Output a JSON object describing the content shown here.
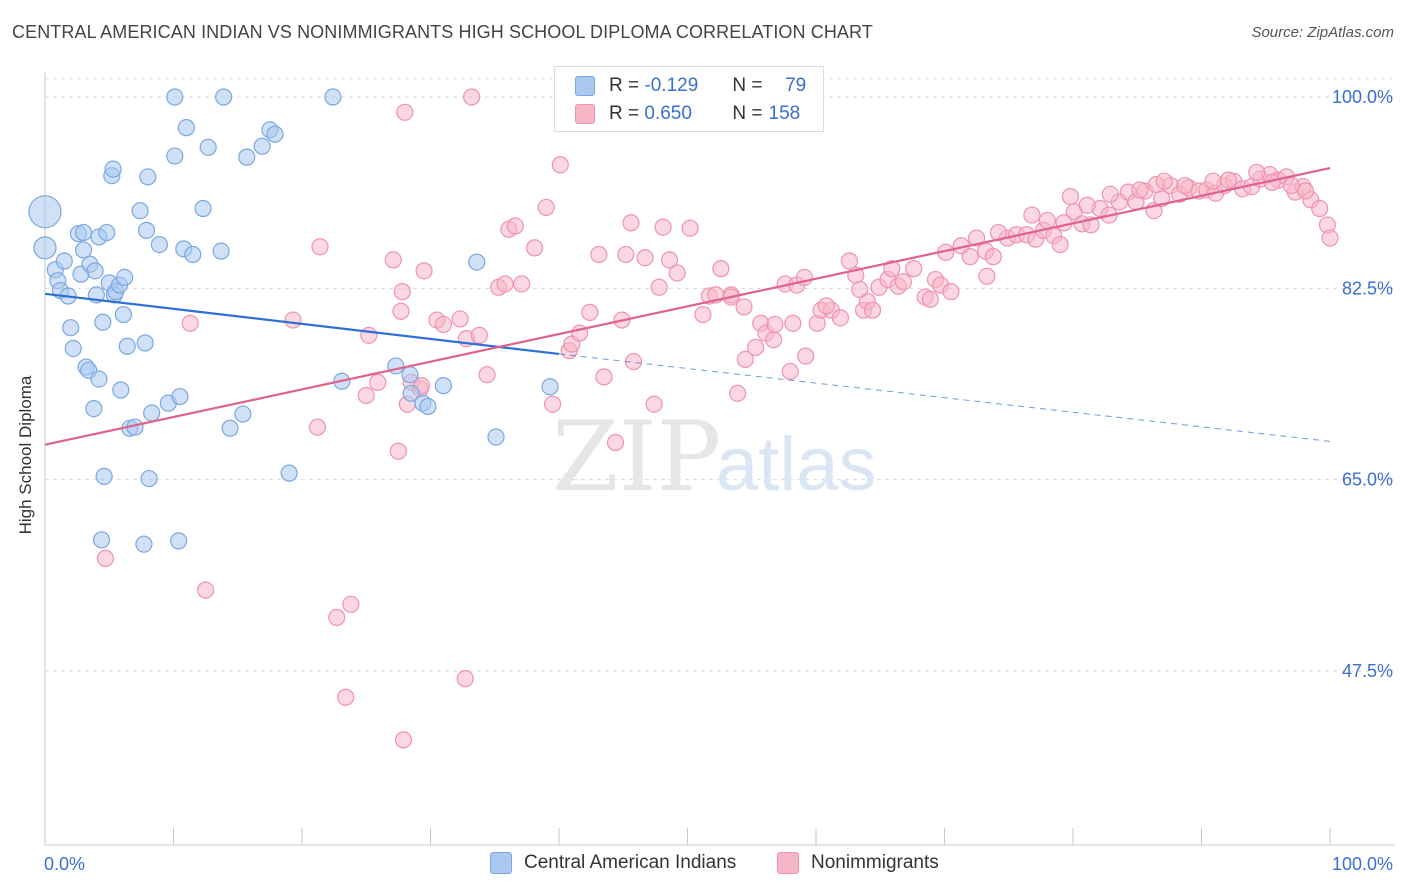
{
  "header": {
    "title": "CENTRAL AMERICAN INDIAN VS NONIMMIGRANTS HIGH SCHOOL DIPLOMA CORRELATION CHART",
    "source": "Source: ZipAtlas.com"
  },
  "legend": {
    "r_label": "R =",
    "n_label": "N =",
    "rows": [
      {
        "r": "-0.129",
        "n": "79"
      },
      {
        "r": "0.650",
        "n": "158"
      }
    ]
  },
  "watermark": {
    "zip": "ZIP",
    "atlas": "atlas"
  },
  "colors": {
    "blue_fill": "#aac8f0",
    "blue_stroke": "#7aa8e0",
    "blue_line": "#2f6fd6",
    "pink_fill": "#f7b6c8",
    "pink_stroke": "#ee93b0",
    "pink_line": "#e0628c",
    "tick_text": "#3a6fd0"
  },
  "chart_data": {
    "type": "scatter",
    "title": "CENTRAL AMERICAN INDIAN VS NONIMMIGRANTS HIGH SCHOOL DIPLOMA CORRELATION CHART",
    "xlabel": "",
    "ylabel": "High School Diploma",
    "xlim": [
      0,
      100
    ],
    "ylim": [
      30,
      102
    ],
    "x_tick_labels": [
      "0.0%",
      "100.0%"
    ],
    "y_ticks": [
      47.5,
      65.0,
      82.5,
      100.0
    ],
    "y_tick_labels": [
      "47.5%",
      "65.0%",
      "82.5%",
      "100.0%"
    ],
    "grid": true,
    "legend_position": "top-center",
    "series": [
      {
        "name": "Central American Indians",
        "r": -0.129,
        "n": 79,
        "trend": {
          "x0": 0,
          "y0": 82.0,
          "x1": 40,
          "y1": 76.5,
          "dash_to_x": 100,
          "dash_to_y": 68.5
        },
        "points": [
          [
            0,
            89.5,
            16
          ],
          [
            0,
            86.2,
            11
          ],
          [
            0.8,
            84.2,
            8
          ],
          [
            1,
            83.2,
            8
          ],
          [
            1.2,
            82.3,
            8
          ],
          [
            1.5,
            85,
            8
          ],
          [
            1.8,
            81.8,
            8
          ],
          [
            2,
            78.9,
            8
          ],
          [
            2.2,
            77,
            8
          ],
          [
            2.6,
            87.5,
            8
          ],
          [
            2.8,
            83.8,
            8
          ],
          [
            3,
            87.6,
            8
          ],
          [
            3,
            86,
            8
          ],
          [
            3.2,
            75.3,
            8
          ],
          [
            3.4,
            75,
            8
          ],
          [
            3.5,
            84.7,
            8
          ],
          [
            3.8,
            71.5,
            8
          ],
          [
            3.9,
            84.1,
            8
          ],
          [
            4,
            81.9,
            8
          ],
          [
            4.2,
            74.2,
            8
          ],
          [
            4.2,
            87.2,
            8
          ],
          [
            4.5,
            79.4,
            8
          ],
          [
            4.6,
            65.3,
            8
          ],
          [
            4.4,
            59.5,
            8
          ],
          [
            4.8,
            87.6,
            8
          ],
          [
            5,
            83,
            8
          ],
          [
            5.2,
            92.8,
            8
          ],
          [
            5.3,
            93.4,
            8
          ],
          [
            5.4,
            81.9,
            8
          ],
          [
            5.5,
            82.2,
            8
          ],
          [
            5.8,
            82.8,
            8
          ],
          [
            5.9,
            73.2,
            8
          ],
          [
            6.1,
            80.1,
            8
          ],
          [
            6.2,
            83.5,
            8
          ],
          [
            6.4,
            77.2,
            8
          ],
          [
            6.6,
            69.7,
            8
          ],
          [
            7,
            69.8,
            8
          ],
          [
            7.4,
            89.6,
            8
          ],
          [
            7.7,
            59.1,
            8
          ],
          [
            7.8,
            77.5,
            8
          ],
          [
            7.9,
            87.8,
            8
          ],
          [
            8,
            92.7,
            8
          ],
          [
            8.1,
            65.1,
            8
          ],
          [
            8.3,
            71.1,
            8
          ],
          [
            8.9,
            86.5,
            8
          ],
          [
            9.6,
            72,
            8
          ],
          [
            10.1,
            94.6,
            8
          ],
          [
            10.1,
            100,
            8
          ],
          [
            10.4,
            59.4,
            8
          ],
          [
            10.5,
            72.6,
            8
          ],
          [
            10.8,
            86.1,
            8
          ],
          [
            11,
            97.2,
            8
          ],
          [
            11.5,
            85.6,
            8
          ],
          [
            12.3,
            89.8,
            8
          ],
          [
            12.7,
            95.4,
            8
          ],
          [
            13.7,
            85.9,
            8
          ],
          [
            13.9,
            100,
            8
          ],
          [
            14.4,
            69.7,
            8
          ],
          [
            15.4,
            71,
            8
          ],
          [
            15.7,
            94.5,
            8
          ],
          [
            16.9,
            95.5,
            8
          ],
          [
            17.5,
            97,
            8
          ],
          [
            17.9,
            96.6,
            8
          ],
          [
            19,
            65.6,
            8
          ],
          [
            22.4,
            100,
            8
          ],
          [
            23.1,
            74,
            8
          ],
          [
            27.3,
            75.4,
            8
          ],
          [
            28.4,
            74.6,
            8
          ],
          [
            28.5,
            72.9,
            8
          ],
          [
            29.4,
            72,
            8
          ],
          [
            29.8,
            71.7,
            8
          ],
          [
            31,
            73.6,
            8
          ],
          [
            33.6,
            84.9,
            8
          ],
          [
            35.1,
            68.9,
            8
          ],
          [
            39.3,
            73.5,
            8
          ]
        ]
      },
      {
        "name": "Nonimmigrants",
        "r": 0.65,
        "n": 158,
        "trend": {
          "x0": 0,
          "y0": 68.2,
          "x1": 100,
          "y1": 93.5
        },
        "points": [
          [
            4.7,
            57.8,
            8
          ],
          [
            11.3,
            79.3,
            8
          ],
          [
            12.5,
            54.9,
            8
          ],
          [
            19.3,
            79.6,
            8
          ],
          [
            21.2,
            69.8,
            8
          ],
          [
            21.4,
            86.3,
            8
          ],
          [
            22.7,
            52.4,
            8
          ],
          [
            23.4,
            45.1,
            8
          ],
          [
            23.8,
            53.6,
            8
          ],
          [
            25,
            72.7,
            8
          ],
          [
            25.2,
            78.2,
            8
          ],
          [
            25.9,
            73.9,
            8
          ],
          [
            27.1,
            85.1,
            8
          ],
          [
            27.5,
            67.6,
            8
          ],
          [
            27.7,
            80.4,
            8
          ],
          [
            27.8,
            82.2,
            8
          ],
          [
            27.9,
            41.2,
            8
          ],
          [
            28,
            98.6,
            8
          ],
          [
            28.2,
            71.9,
            8
          ],
          [
            28.5,
            73.9,
            8
          ],
          [
            29.2,
            73.3,
            8
          ],
          [
            29.3,
            73.6,
            8
          ],
          [
            29.5,
            84.1,
            8
          ],
          [
            30.5,
            79.6,
            8
          ],
          [
            31,
            79.2,
            8
          ],
          [
            32.3,
            79.7,
            8
          ],
          [
            32.7,
            46.8,
            8
          ],
          [
            32.8,
            77.9,
            8
          ],
          [
            33.2,
            100,
            8
          ],
          [
            33.8,
            78.2,
            8
          ],
          [
            34.4,
            74.6,
            8
          ],
          [
            35.3,
            82.6,
            8
          ],
          [
            35.8,
            82.9,
            8
          ],
          [
            36.1,
            87.9,
            8
          ],
          [
            36.6,
            88.2,
            8
          ],
          [
            37.1,
            82.9,
            8
          ],
          [
            38.1,
            86.2,
            8
          ],
          [
            39,
            89.9,
            8
          ],
          [
            39.5,
            71.9,
            8
          ],
          [
            40.1,
            93.8,
            8
          ],
          [
            40.8,
            76.8,
            8
          ],
          [
            41,
            77.4,
            8
          ],
          [
            41.6,
            78.4,
            8
          ],
          [
            42.4,
            80.3,
            8
          ],
          [
            43.1,
            85.6,
            8
          ],
          [
            43.5,
            74.4,
            8
          ],
          [
            44.4,
            68.4,
            8
          ],
          [
            44.9,
            79.6,
            8
          ],
          [
            45.2,
            85.6,
            8
          ],
          [
            45.6,
            88.5,
            8
          ],
          [
            45.8,
            75.8,
            8
          ],
          [
            46.7,
            85.3,
            8
          ],
          [
            47.4,
            71.9,
            8
          ],
          [
            47.8,
            82.6,
            8
          ],
          [
            48.1,
            88.1,
            8
          ],
          [
            48.6,
            85.1,
            8
          ],
          [
            49.2,
            83.9,
            8
          ],
          [
            50.2,
            88,
            8
          ],
          [
            51.2,
            80.1,
            8
          ],
          [
            51.7,
            81.8,
            8
          ],
          [
            52.2,
            81.9,
            8
          ],
          [
            52.6,
            84.3,
            8
          ],
          [
            53.4,
            81.9,
            8
          ],
          [
            53.4,
            81.7,
            8
          ],
          [
            53.9,
            72.9,
            8
          ],
          [
            54.4,
            80.8,
            8
          ],
          [
            54.5,
            76,
            8
          ],
          [
            55.7,
            79.3,
            8
          ],
          [
            56.1,
            78.4,
            8
          ],
          [
            56.7,
            77.8,
            8
          ],
          [
            56.8,
            79.2,
            8
          ],
          [
            57.6,
            82.9,
            8
          ],
          [
            58,
            74.9,
            8
          ],
          [
            58.5,
            82.8,
            8
          ],
          [
            59.1,
            83.5,
            8
          ],
          [
            59.2,
            76.3,
            8
          ],
          [
            60.1,
            79.3,
            8
          ],
          [
            60.4,
            80.5,
            8
          ],
          [
            61.2,
            80.5,
            8
          ],
          [
            61.9,
            79.8,
            8
          ],
          [
            62.6,
            85,
            8
          ],
          [
            63.1,
            83.7,
            8
          ],
          [
            63.7,
            80.5,
            8
          ],
          [
            64,
            81.3,
            8
          ],
          [
            64.4,
            80.5,
            8
          ],
          [
            64.9,
            82.6,
            8
          ],
          [
            65.6,
            83.3,
            8
          ],
          [
            65.9,
            84.3,
            8
          ],
          [
            66.4,
            82.7,
            8
          ],
          [
            66.8,
            83.1,
            8
          ],
          [
            68.5,
            81.7,
            8
          ],
          [
            68.9,
            81.5,
            8
          ],
          [
            69.3,
            83.3,
            8
          ],
          [
            69.7,
            82.8,
            8
          ],
          [
            70.5,
            82.2,
            8
          ],
          [
            71.3,
            86.4,
            8
          ],
          [
            72,
            85.4,
            8
          ],
          [
            73.2,
            85.9,
            8
          ],
          [
            73.3,
            83.6,
            8
          ],
          [
            73.8,
            85.4,
            8
          ],
          [
            74.9,
            87.1,
            8
          ],
          [
            75.6,
            87.4,
            8
          ],
          [
            76.4,
            87.4,
            8
          ],
          [
            77.1,
            87,
            8
          ],
          [
            77.7,
            87.8,
            8
          ],
          [
            78.5,
            87.3,
            8
          ],
          [
            79,
            86.5,
            8
          ],
          [
            79.3,
            88.5,
            8
          ],
          [
            80.1,
            89.5,
            8
          ],
          [
            80.7,
            88.4,
            8
          ],
          [
            81.4,
            88.3,
            8
          ],
          [
            82.1,
            89.8,
            8
          ],
          [
            82.8,
            89.2,
            8
          ],
          [
            83.6,
            90.4,
            8
          ],
          [
            84.3,
            91.3,
            8
          ],
          [
            84.9,
            90.4,
            8
          ],
          [
            85.6,
            91.4,
            8
          ],
          [
            86.3,
            89.6,
            8
          ],
          [
            86.9,
            90.7,
            8
          ],
          [
            87.6,
            91.9,
            8
          ],
          [
            88.3,
            91.1,
            8
          ],
          [
            89,
            91.7,
            8
          ],
          [
            89.8,
            91.4,
            8
          ],
          [
            90.4,
            91.5,
            8
          ],
          [
            91.1,
            91.2,
            8
          ],
          [
            91.8,
            91.9,
            8
          ],
          [
            92.5,
            92.3,
            8
          ],
          [
            93.2,
            91.6,
            8
          ],
          [
            93.9,
            91.8,
            8
          ],
          [
            94.6,
            92.5,
            8
          ],
          [
            95.3,
            92.9,
            8
          ],
          [
            96,
            92.4,
            8
          ],
          [
            96.6,
            92.7,
            8
          ],
          [
            97.3,
            91.3,
            8
          ],
          [
            97.9,
            91.8,
            8
          ],
          [
            98.5,
            90.6,
            8
          ],
          [
            99.2,
            89.8,
            8
          ],
          [
            99.8,
            88.3,
            8
          ],
          [
            100,
            87.1,
            8
          ],
          [
            86.5,
            92,
            8
          ],
          [
            88.7,
            91.9,
            8
          ],
          [
            90.9,
            92.3,
            8
          ],
          [
            92.1,
            92.4,
            8
          ],
          [
            94.3,
            93.1,
            8
          ],
          [
            95.5,
            92.2,
            8
          ],
          [
            97,
            91.9,
            8
          ],
          [
            98.1,
            91.4,
            8
          ],
          [
            82.9,
            91.1,
            8
          ],
          [
            85.2,
            91.5,
            8
          ],
          [
            87.1,
            92.3,
            8
          ],
          [
            79.8,
            90.9,
            8
          ],
          [
            81.1,
            90.1,
            8
          ],
          [
            76.8,
            89.2,
            8
          ],
          [
            78,
            88.7,
            8
          ],
          [
            74.2,
            87.6,
            8
          ],
          [
            72.5,
            87.1,
            8
          ],
          [
            70.1,
            85.8,
            8
          ],
          [
            67.6,
            84.3,
            8
          ],
          [
            63.4,
            82.4,
            8
          ],
          [
            60.8,
            80.9,
            8
          ],
          [
            58.2,
            79.3,
            8
          ],
          [
            55.3,
            77.1,
            8
          ]
        ]
      }
    ]
  },
  "bottom_legend": [
    "Central American Indians",
    "Nonimmigrants"
  ]
}
